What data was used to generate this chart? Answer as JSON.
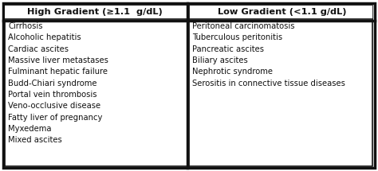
{
  "col1_header": "High Gradient (≥1.1  g/dL)",
  "col2_header": "Low Gradient (<1.1 g/dL)",
  "col1_items": [
    "Cirrhosis",
    "Alcoholic hepatitis",
    "Cardiac ascites",
    "Massive liver metastases",
    "Fulminant hepatic failure",
    "Budd-Chiari syndrome",
    "Portal vein thrombosis",
    "Veno-occlusive disease",
    "Fatty liver of pregnancy",
    "Myxedema",
    "Mixed ascites"
  ],
  "col2_items": [
    "Peritoneal carcinomatosis",
    "Tuberculous peritonitis",
    "Pancreatic ascites",
    "Biliary ascites",
    "Nephrotic syndrome",
    "Serositis in connective tissue diseases"
  ],
  "bg_color": "#ffffff",
  "header_bg": "#ffffff",
  "border_color": "#111111",
  "text_color": "#111111",
  "header_fontsize": 8.2,
  "body_fontsize": 7.2
}
